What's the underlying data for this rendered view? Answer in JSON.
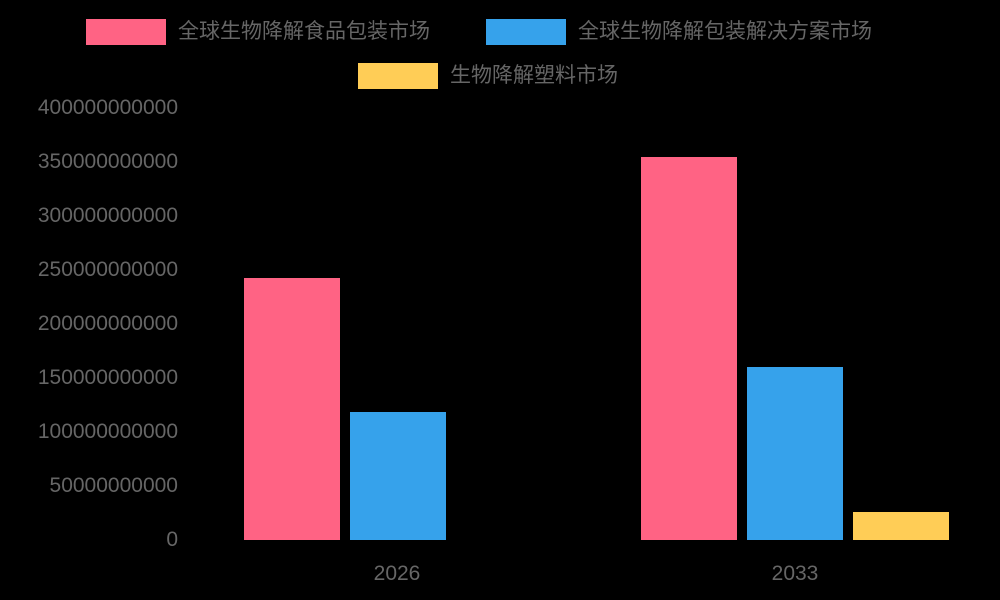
{
  "chart_data": {
    "type": "bar",
    "title": "",
    "xlabel": "",
    "ylabel": "",
    "categories": [
      "2026",
      "2033"
    ],
    "series": [
      {
        "name": "全球生物降解食品包装市场",
        "color": "#ff6384",
        "values": [
          243000000000,
          355000000000
        ]
      },
      {
        "name": "全球生物降解包装解决方案市场",
        "color": "#36a2eb",
        "values": [
          118500000000,
          160000000000
        ]
      },
      {
        "name": "生物降解塑料市场",
        "color": "#ffcd56",
        "values": [
          null,
          26000000000
        ]
      }
    ],
    "ylim": [
      0,
      400000000000
    ],
    "yticks": [
      "0",
      "50000000000",
      "100000000000",
      "150000000000",
      "200000000000",
      "250000000000",
      "300000000000",
      "350000000000",
      "400000000000"
    ],
    "grid": false,
    "legend_position": "top"
  },
  "legend": {
    "items": [
      {
        "label": "全球生物降解食品包装市场",
        "color": "#ff6384"
      },
      {
        "label": "全球生物降解包装解决方案市场",
        "color": "#36a2eb"
      },
      {
        "label": "生物降解塑料市场",
        "color": "#ffcd56"
      }
    ]
  },
  "axis": {
    "y_labels": [
      "400000000000",
      "350000000000",
      "300000000000",
      "250000000000",
      "200000000000",
      "150000000000",
      "100000000000",
      "50000000000",
      "0"
    ],
    "x_labels": [
      "2026",
      "2033"
    ]
  }
}
